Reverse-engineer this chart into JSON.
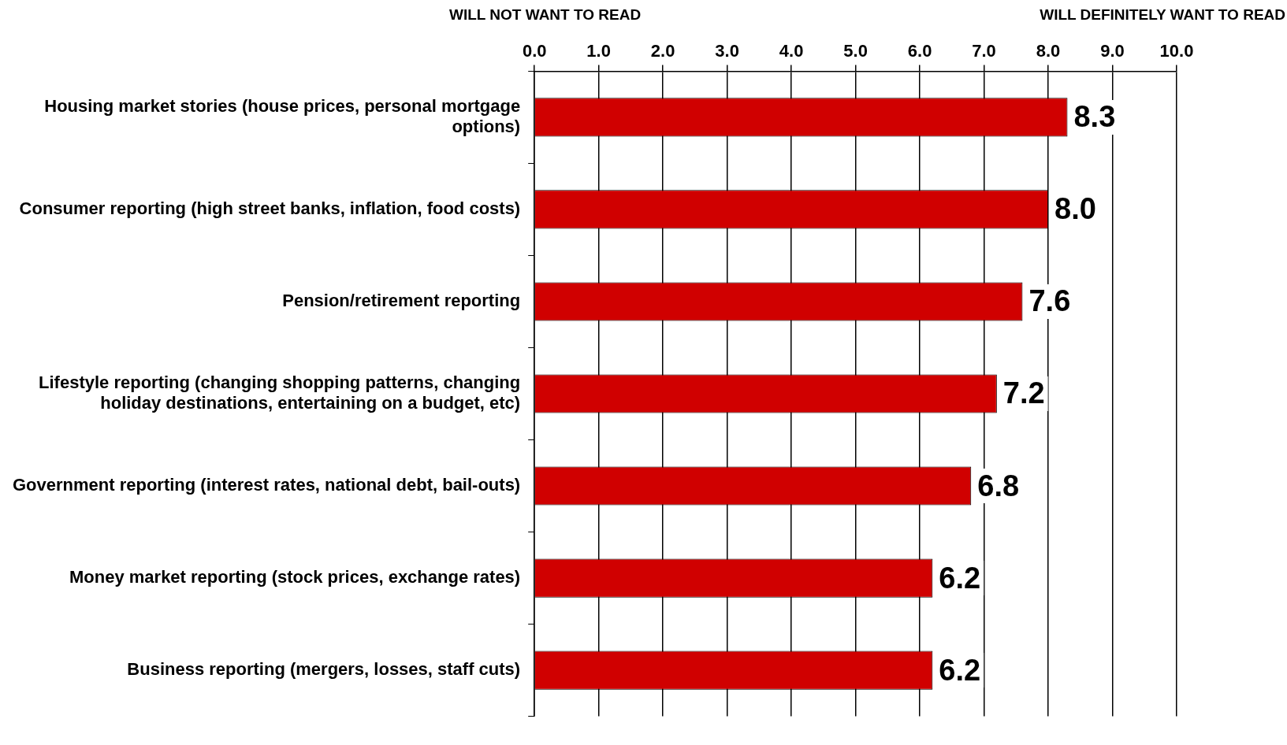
{
  "chart_data": {
    "type": "bar",
    "orientation": "horizontal",
    "annotations": [
      "WILL NOT WANT TO READ",
      "WILL DEFINITELY WANT TO READ"
    ],
    "categories": [
      "Housing market stories (house prices, personal mortgage options)",
      "Consumer reporting (high street banks, inflation, food costs)",
      "Pension/retirement reporting",
      "Lifestyle reporting (changing shopping patterns, changing holiday destinations, entertaining on a budget, etc)",
      "Government reporting (interest rates, national debt, bail-outs)",
      "Money market reporting (stock prices, exchange rates)",
      "Business reporting (mergers, losses, staff cuts)"
    ],
    "values": [
      8.3,
      8.0,
      7.6,
      7.2,
      6.8,
      6.2,
      6.2
    ],
    "value_labels": [
      "8.3",
      "8.0",
      "7.6",
      "7.2",
      "6.8",
      "6.2",
      "6.2"
    ],
    "color": "#d00000",
    "xlim": [
      0,
      10
    ],
    "xticks": [
      {
        "value": 0,
        "label": "0.0"
      },
      {
        "value": 1,
        "label": "1.0"
      },
      {
        "value": 2,
        "label": "2.0"
      },
      {
        "value": 3,
        "label": "3.0"
      },
      {
        "value": 4,
        "label": "4.0"
      },
      {
        "value": 5,
        "label": "5.0"
      },
      {
        "value": 6,
        "label": "6.0"
      },
      {
        "value": 7,
        "label": "7.0"
      },
      {
        "value": 8,
        "label": "8.0"
      },
      {
        "value": 9,
        "label": "9.0"
      },
      {
        "value": 10,
        "label": "10.0"
      }
    ],
    "grid": "x",
    "legend": false
  }
}
